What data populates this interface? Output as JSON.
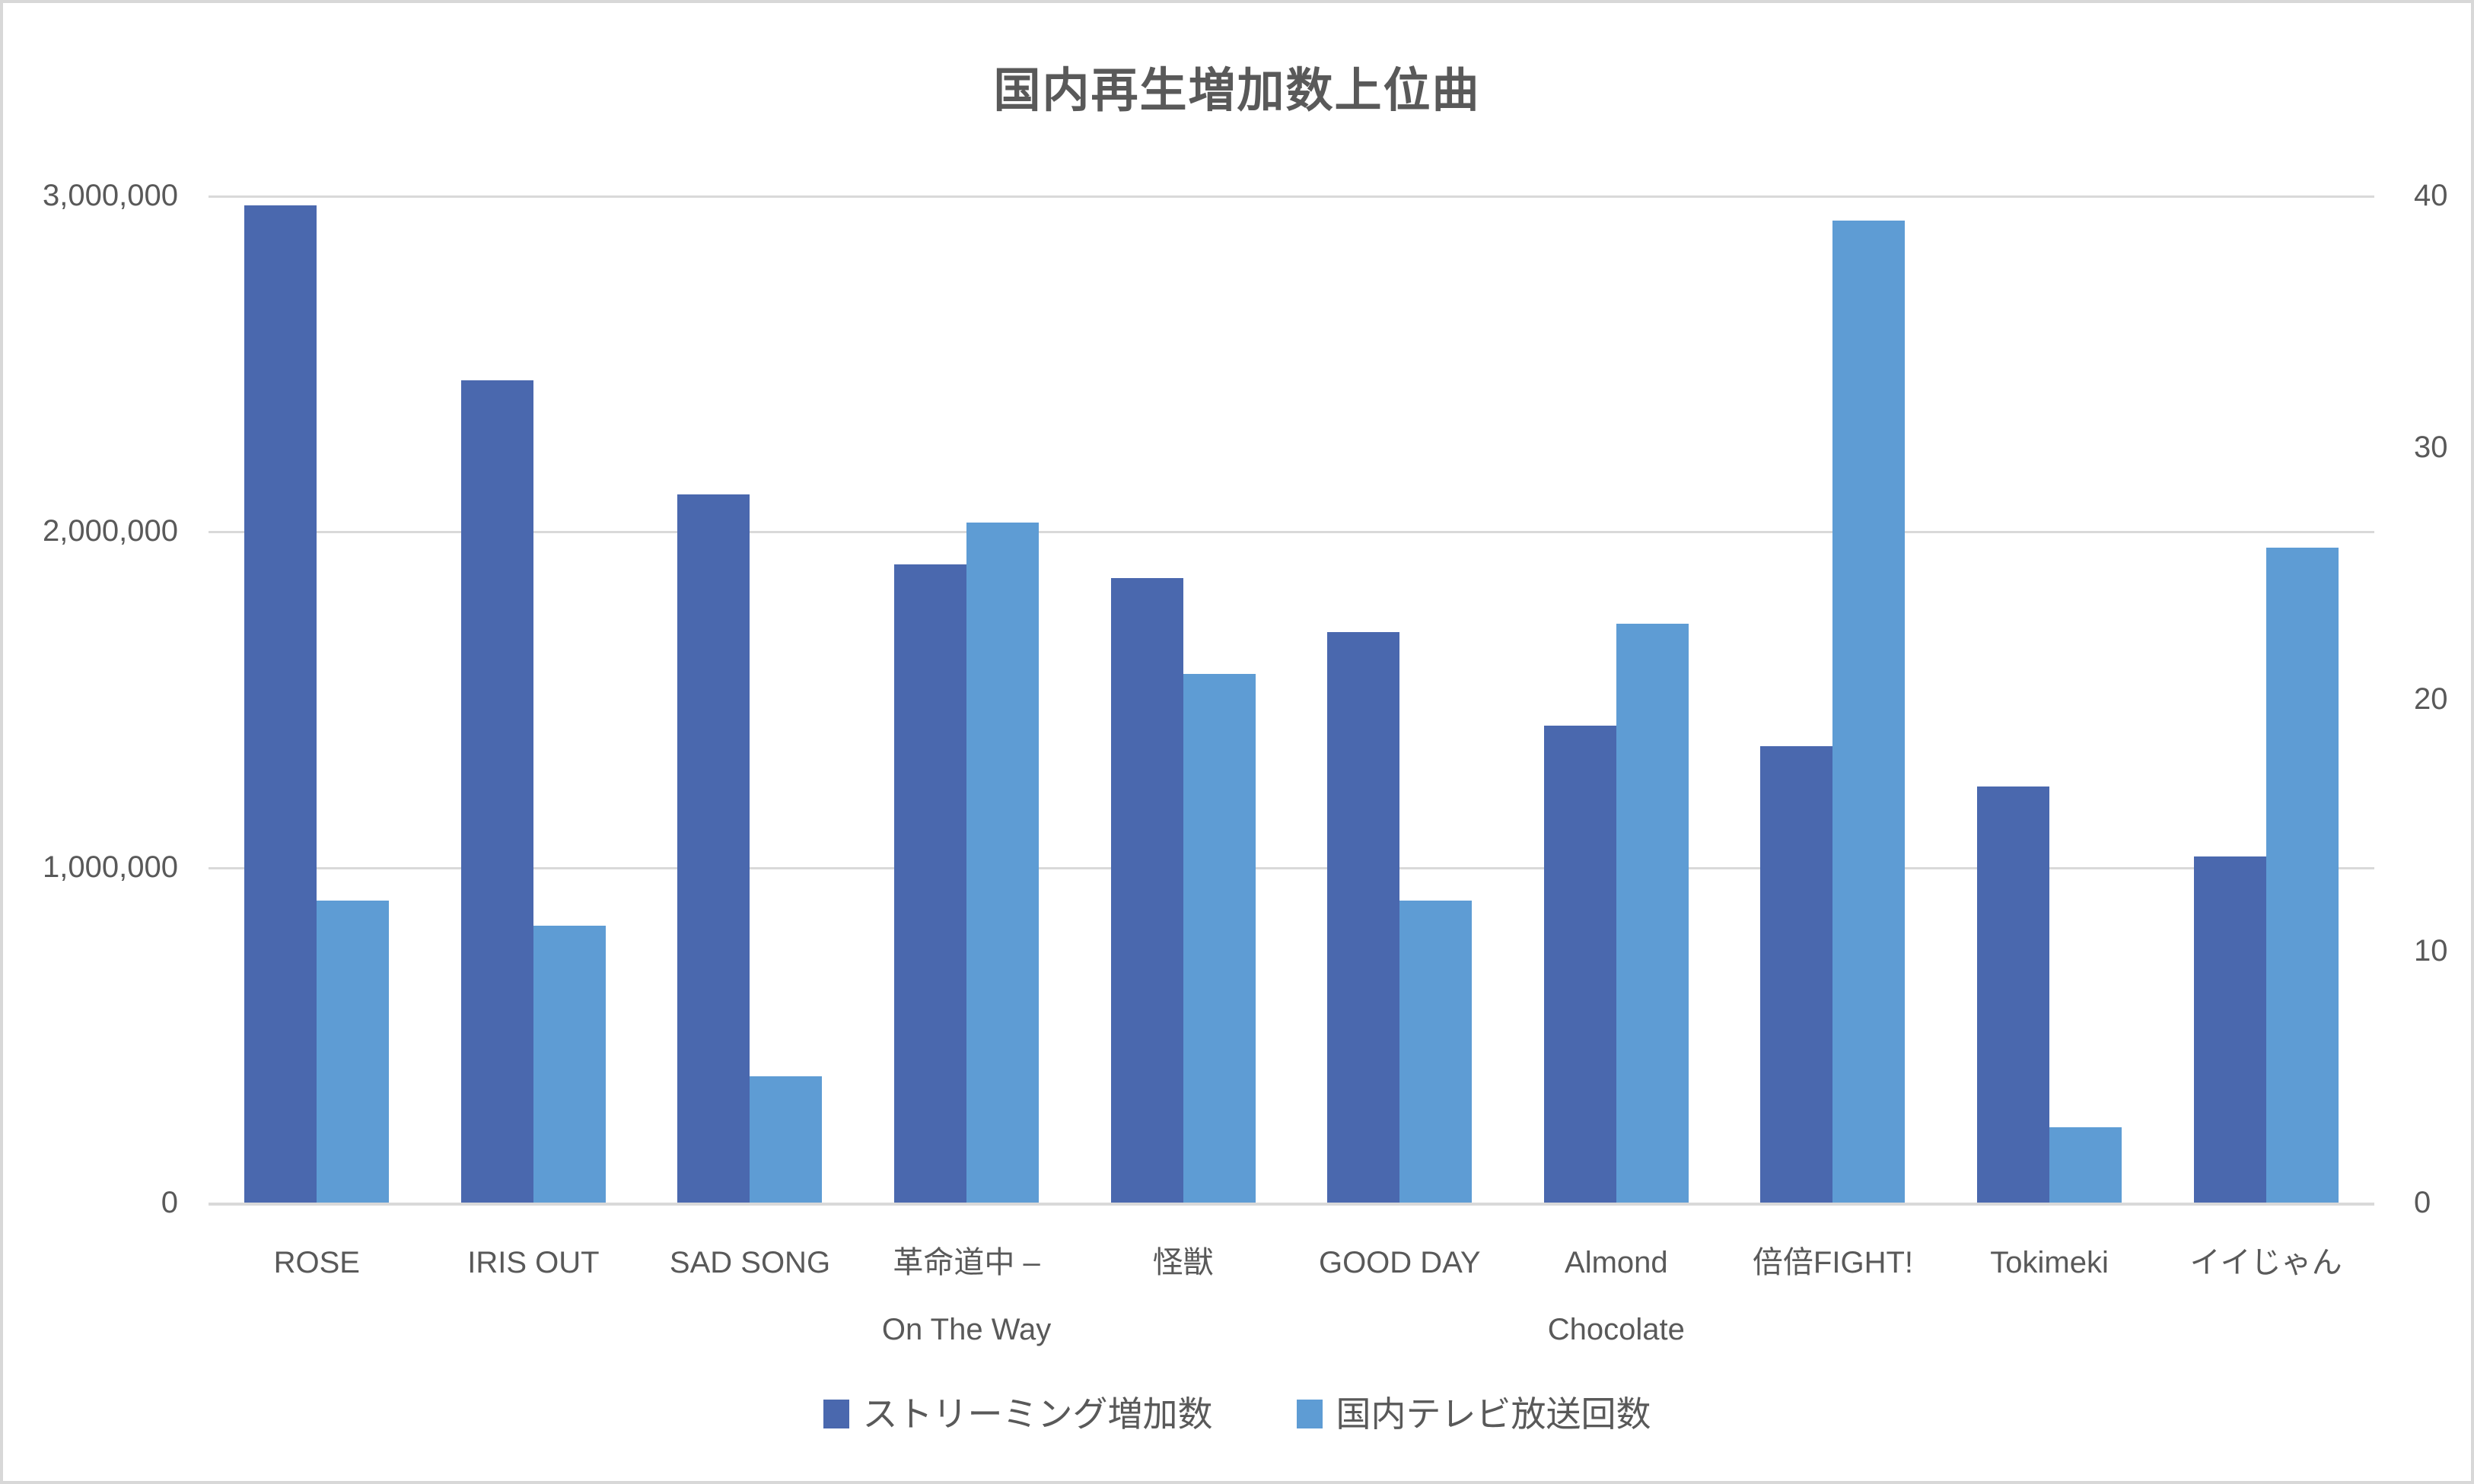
{
  "chart_data": {
    "type": "bar",
    "title": "国内再生増加数上位曲",
    "categories": [
      "ROSE",
      "IRIS OUT",
      "SAD SONG",
      "革命道中 – On The Way",
      "怪獣",
      "GOOD DAY",
      "Almond Chocolate",
      "倍倍FIGHT!",
      "Tokimeki",
      "イイじゃん"
    ],
    "category_label_lines": [
      [
        "ROSE"
      ],
      [
        "IRIS OUT"
      ],
      [
        "SAD SONG"
      ],
      [
        "革命道中 –",
        "On The Way"
      ],
      [
        "怪獣"
      ],
      [
        "GOOD DAY"
      ],
      [
        "Almond",
        "Chocolate"
      ],
      [
        "倍倍FIGHT!"
      ],
      [
        "Tokimeki"
      ],
      [
        "イイじゃん"
      ]
    ],
    "series": [
      {
        "name": "ストリーミング増加数",
        "axis": "left",
        "color": "#4A68AE",
        "values": [
          2970000,
          2450000,
          2110000,
          1900000,
          1860000,
          1700000,
          1420000,
          1360000,
          1240000,
          1030000
        ]
      },
      {
        "name": "国内テレビ放送回数",
        "axis": "right",
        "color": "#5E9CD4",
        "values": [
          12,
          11,
          5,
          27,
          21,
          12,
          23,
          39,
          3,
          26
        ]
      }
    ],
    "left_axis": {
      "min": 0,
      "max": 3000000,
      "tick_labels": [
        "3,000,000",
        "2,000,000",
        "1,000,000",
        "0"
      ]
    },
    "right_axis": {
      "min": 0,
      "max": 40,
      "tick_labels": [
        "40",
        "30",
        "20",
        "10",
        "0"
      ]
    },
    "grid": true,
    "legend_position": "bottom"
  },
  "style": {
    "text_color": "#595959",
    "grid_color": "#D9D9D9",
    "border_color": "#D8D8D8",
    "background": "#FFFFFF"
  }
}
